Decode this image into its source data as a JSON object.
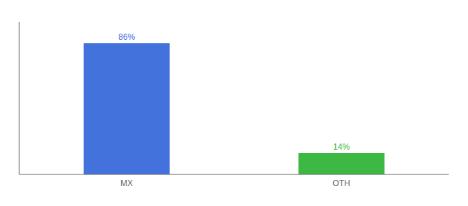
{
  "chart_data": {
    "type": "bar",
    "categories": [
      "MX",
      "OTH"
    ],
    "values": [
      86,
      14
    ],
    "value_labels": [
      "86%",
      "14%"
    ],
    "data_labels": true,
    "colors": [
      "#4472dd",
      "#3cb843"
    ],
    "ylim": [
      0,
      100
    ],
    "tick_labels": "x"
  }
}
